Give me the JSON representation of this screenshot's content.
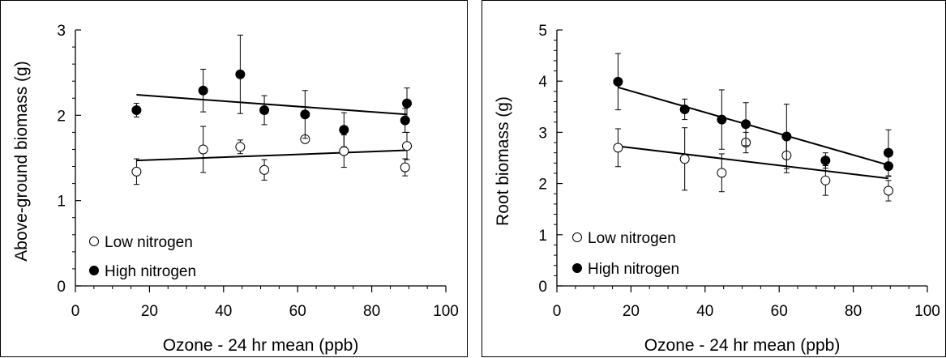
{
  "chart_data": [
    {
      "type": "scatter",
      "title": "",
      "xlabel": "Ozone - 24 hr mean (ppb)",
      "ylabel": "Above-ground biomass (g)",
      "xlim": [
        0,
        100
      ],
      "ylim": [
        0,
        3
      ],
      "x_ticks": [
        0,
        20,
        40,
        60,
        80,
        100
      ],
      "y_ticks": [
        0,
        1,
        2,
        3
      ],
      "x_tick_labels": [
        "0",
        "20",
        "40",
        "60",
        "80",
        "100"
      ],
      "y_tick_labels": [
        "0",
        "1",
        "2",
        "3"
      ],
      "grid": false,
      "legend_position": "bottom-left",
      "series": [
        {
          "name": "Low nitrogen",
          "marker": "open-circle",
          "x": [
            16.5,
            34.5,
            44.5,
            51,
            62,
            72.5,
            89,
            89.5
          ],
          "y": [
            1.34,
            1.6,
            1.63,
            1.36,
            1.72,
            1.58,
            1.39,
            1.64
          ],
          "error": [
            0.15,
            0.27,
            0.08,
            0.12,
            0.0,
            0.19,
            0.1,
            0.16
          ],
          "trend": {
            "x": [
              16.5,
              89.5
            ],
            "y": [
              1.47,
              1.59
            ]
          }
        },
        {
          "name": "High nitrogen",
          "marker": "filled-circle",
          "x": [
            16.5,
            34.5,
            44.5,
            51,
            62,
            72.5,
            89,
            89.5
          ],
          "y": [
            2.06,
            2.29,
            2.48,
            2.06,
            2.01,
            1.83,
            1.94,
            2.14
          ],
          "error": [
            0.08,
            0.25,
            0.46,
            0.17,
            0.28,
            0.2,
            0.14,
            0.18
          ],
          "trend": {
            "x": [
              16.5,
              89.5
            ],
            "y": [
              2.24,
              2.01
            ]
          }
        }
      ]
    },
    {
      "type": "scatter",
      "title": "",
      "xlabel": "Ozone - 24 hr mean (ppb)",
      "ylabel": "Root biomass (g)",
      "xlim": [
        0,
        100
      ],
      "ylim": [
        0,
        5
      ],
      "x_ticks": [
        0,
        20,
        40,
        60,
        80,
        100
      ],
      "y_ticks": [
        0,
        1,
        2,
        3,
        4,
        5
      ],
      "x_tick_labels": [
        "0",
        "20",
        "40",
        "60",
        "80",
        "100"
      ],
      "y_tick_labels": [
        "0",
        "1",
        "2",
        "3",
        "4",
        "5"
      ],
      "grid": false,
      "legend_position": "bottom-left",
      "series": [
        {
          "name": "Low nitrogen",
          "marker": "open-circle",
          "x": [
            16.5,
            34.5,
            44.5,
            51,
            62,
            72.5,
            89.5
          ],
          "y": [
            2.7,
            2.48,
            2.21,
            2.8,
            2.55,
            2.06,
            1.86
          ],
          "error": [
            0.37,
            0.61,
            0.37,
            0.2,
            0.34,
            0.29,
            0.2
          ],
          "trend": {
            "x": [
              16.5,
              89.5
            ],
            "y": [
              2.73,
              2.1
            ]
          }
        },
        {
          "name": "High nitrogen",
          "marker": "filled-circle",
          "x": [
            16.5,
            34.5,
            44.5,
            51,
            62,
            72.5,
            89.5,
            89.5
          ],
          "y": [
            3.99,
            3.45,
            3.25,
            3.16,
            2.92,
            2.45,
            2.34,
            2.6
          ],
          "error": [
            0.55,
            0.2,
            0.58,
            0.42,
            0.63,
            0.15,
            0.2,
            0.45
          ],
          "trend": {
            "x": [
              16.5,
              89.5
            ],
            "y": [
              3.88,
              2.36
            ]
          }
        }
      ]
    }
  ]
}
